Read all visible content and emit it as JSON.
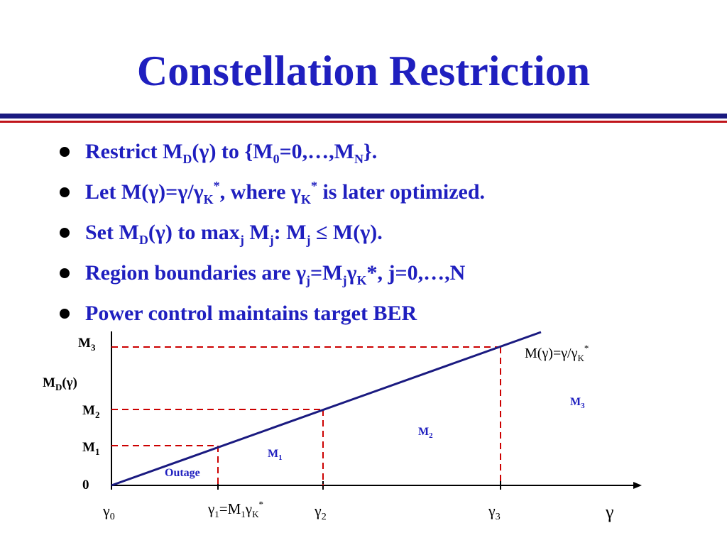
{
  "title": "Constellation Restriction",
  "colors": {
    "title": "#1f1fbf",
    "rule_navy": "#1a1a80",
    "rule_red": "#c0141a",
    "dashed": "#cc0000",
    "line": "#1a1a80"
  },
  "bullets": [
    {
      "segments": [
        {
          "t": "Restrict M"
        },
        {
          "t": "D",
          "sub": true
        },
        {
          "t": "(γ) to {M"
        },
        {
          "t": "0",
          "sub": true
        },
        {
          "t": "=0,…,M"
        },
        {
          "t": "N",
          "sub": true
        },
        {
          "t": "}."
        }
      ]
    },
    {
      "segments": [
        {
          "t": "Let M(γ)=γ/γ"
        },
        {
          "t": "K",
          "sub": true
        },
        {
          "t": "*",
          "sup": true
        },
        {
          "t": ", where γ"
        },
        {
          "t": "K",
          "sub": true
        },
        {
          "t": "*",
          "sup": true
        },
        {
          "t": " is later optimized."
        }
      ]
    },
    {
      "segments": [
        {
          "t": "Set M"
        },
        {
          "t": "D",
          "sub": true
        },
        {
          "t": "(γ) to max"
        },
        {
          "t": "j",
          "sub": true
        },
        {
          "t": " M"
        },
        {
          "t": "j",
          "sub": true
        },
        {
          "t": ": M"
        },
        {
          "t": "j",
          "sub": true
        },
        {
          "t": " ≤ M(γ)."
        }
      ]
    },
    {
      "segments": [
        {
          "t": "Region boundaries are γ"
        },
        {
          "t": "j",
          "sub": true
        },
        {
          "t": "=M"
        },
        {
          "t": "j",
          "sub": true
        },
        {
          "t": "γ"
        },
        {
          "t": "K",
          "sub": true
        },
        {
          "t": "*, j=0,…,N"
        }
      ]
    },
    {
      "segments": [
        {
          "t": "Power control maintains target BER"
        }
      ]
    }
  ],
  "diagram": {
    "y_axis": {
      "title": {
        "main": "M",
        "sub": "D",
        "tail": "(γ)"
      },
      "levels": [
        {
          "id": "zero",
          "main": "0",
          "sub": ""
        },
        {
          "id": "m1",
          "main": "M",
          "sub": "1"
        },
        {
          "id": "m2",
          "main": "M",
          "sub": "2"
        },
        {
          "id": "m3",
          "main": "M",
          "sub": "3"
        }
      ]
    },
    "x_axis": {
      "title": "γ",
      "ticks": [
        {
          "id": "g0",
          "main": "γ",
          "sub": "0",
          "tail": ""
        },
        {
          "id": "g1",
          "main": "γ",
          "sub": "1",
          "tail": "=M₁γK*"
        },
        {
          "id": "g2",
          "main": "γ",
          "sub": "2",
          "tail": ""
        },
        {
          "id": "g3",
          "main": "γ",
          "sub": "3",
          "tail": ""
        }
      ]
    },
    "line_label": {
      "main": "M(γ)=γ/γ",
      "sub": "K",
      "sup": "*"
    },
    "regions": [
      {
        "id": "outage",
        "label": "Outage",
        "sub": ""
      },
      {
        "id": "m1",
        "label": "M",
        "sub": "1"
      },
      {
        "id": "m2",
        "label": "M",
        "sub": "2"
      },
      {
        "id": "m3",
        "label": "M",
        "sub": "3"
      }
    ]
  }
}
